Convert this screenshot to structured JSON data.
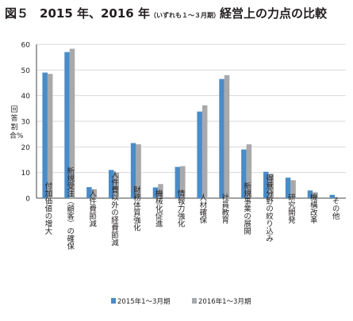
{
  "title": {
    "fig": "図５",
    "main": "2015 年、2016 年",
    "note": "（いずれも１～３月期）",
    "sub": "経営上の力点の比較"
  },
  "colors": {
    "series_2015": "#4a8cc8",
    "series_2016": "#a8a9ab",
    "grid": "#d9d9d9",
    "axis": "#444444"
  },
  "chart_data": {
    "type": "bar",
    "title": "2015 年、2016 年（いずれも１～３月期）経営上の力点の比較",
    "ylabel": "回答割合%",
    "ylim": [
      0,
      60
    ],
    "yticks": [
      0,
      10,
      20,
      30,
      40,
      50,
      60
    ],
    "grid": true,
    "legend": "bottom",
    "categories": [
      "付加価値の増大",
      "新規受注（顧客）の確保",
      "人件費節減",
      "人件費以外の経費節減",
      "財務体質強化",
      "機械化促進",
      "情報力強化",
      "人材確保",
      "社員教育",
      "新規事業の展開",
      "得意分野の絞り込み",
      "研究開発",
      "機構改革",
      "その他"
    ],
    "series": [
      {
        "name": "2015年1～3月期",
        "values": [
          49,
          57,
          4.3,
          11,
          21.5,
          4.2,
          12.2,
          33.8,
          46.5,
          19,
          10.3,
          8,
          3,
          1.3
        ]
      },
      {
        "name": "2016年1～3月期",
        "values": [
          48.5,
          58.3,
          3.5,
          10,
          21,
          5.5,
          12.5,
          36.2,
          48,
          21,
          9.5,
          7,
          2.3,
          0.3
        ]
      }
    ]
  }
}
